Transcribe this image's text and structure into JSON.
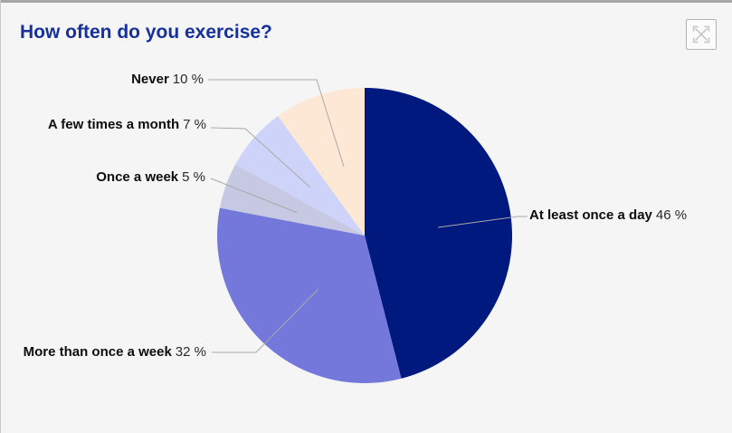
{
  "window": {
    "title": "How often do you exercise?",
    "title_color": "#16309c",
    "background_color": "#f5f5f6",
    "expand_button": "expand-icon"
  },
  "chart_data": {
    "type": "pie",
    "title": "How often do you exercise?",
    "start_angle_deg": 0,
    "direction": "clockwise",
    "legend": "none",
    "label_line_color": "#a9a9a9",
    "slices": [
      {
        "label": "At least once a day",
        "value": 46,
        "pct_label": "46 %",
        "color": "#00197f"
      },
      {
        "label": "More than once a week",
        "value": 32,
        "pct_label": "32 %",
        "color": "#7478db"
      },
      {
        "label": "Once a week",
        "value": 5,
        "pct_label": "5 %",
        "color": "#c7c9e3"
      },
      {
        "label": "A few times a month",
        "value": 7,
        "pct_label": "7 %",
        "color": "#cdd3f9"
      },
      {
        "label": "Never",
        "value": 10,
        "pct_label": "10 %",
        "color": "#fce8d5"
      }
    ]
  }
}
